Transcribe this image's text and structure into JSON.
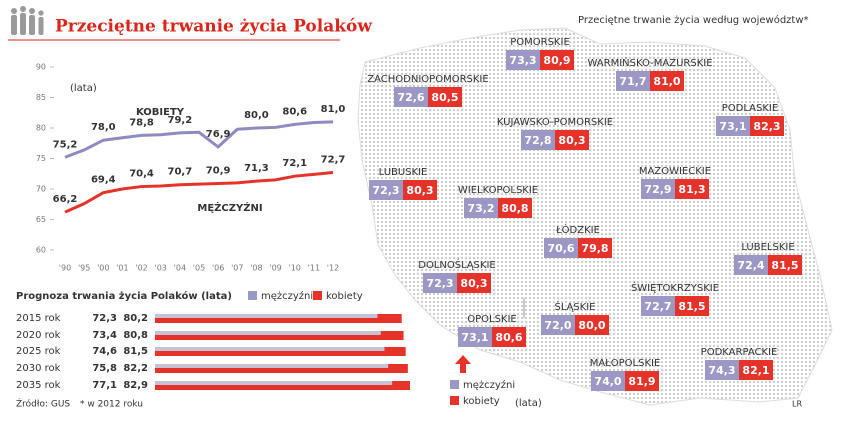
{
  "title": "Przeciętne trwanie życia Polaków",
  "chart_data": [
    {
      "type": "line",
      "ylabel": "(lata)",
      "categories": [
        "'90",
        "'95",
        "'00",
        "'01",
        "'02",
        "'03",
        "'04",
        "'05",
        "'06",
        "'07",
        "'08",
        "'09",
        "'10",
        "'11",
        "'12"
      ],
      "ylim": [
        60,
        90
      ],
      "yticks": [
        60,
        65,
        70,
        75,
        80,
        85,
        90
      ],
      "series": [
        {
          "name": "KOBIETY",
          "color": "#8e8bc3",
          "values": [
            75.2,
            76.4,
            78.0,
            78.4,
            78.8,
            78.9,
            79.2,
            79.3,
            76.9,
            79.8,
            80.0,
            80.1,
            80.6,
            80.9,
            81.0
          ],
          "value_labels": [
            "75,2",
            null,
            "78,0",
            null,
            "78,8",
            null,
            "79,2",
            null,
            "76,9",
            null,
            "80,0",
            null,
            "80,6",
            null,
            "81,0"
          ]
        },
        {
          "name": "MĘŻCZYŹNI",
          "color": "#e5332a",
          "values": [
            66.2,
            67.6,
            69.4,
            70.0,
            70.4,
            70.5,
            70.7,
            70.8,
            70.9,
            71.0,
            71.3,
            71.5,
            72.1,
            72.4,
            72.7
          ],
          "value_labels": [
            "66,2",
            null,
            "69,4",
            null,
            "70,4",
            null,
            "70,7",
            null,
            "70,9",
            null,
            "71,3",
            null,
            "72,1",
            null,
            "72,7"
          ]
        }
      ]
    },
    {
      "type": "bar",
      "orientation": "horizontal",
      "title": "Prognoza trwania życia Polaków (lata)",
      "categories": [
        "2015 rok",
        "2020 rok",
        "2025 rok",
        "2030 rok",
        "2035 rok"
      ],
      "series": [
        {
          "name": "mężczyźni",
          "color": "#c4c2d4",
          "values": [
            72.3,
            73.4,
            74.6,
            75.8,
            77.1
          ],
          "value_labels": [
            "72,3",
            "73,4",
            "74,6",
            "75,8",
            "77,1"
          ]
        },
        {
          "name": "kobiety",
          "color": "#e5332a",
          "values": [
            80.2,
            80.8,
            81.5,
            82.2,
            82.9
          ],
          "value_labels": [
            "80,2",
            "80,8",
            "81,5",
            "82,2",
            "82,9"
          ]
        }
      ]
    }
  ],
  "map": {
    "title": "Przeciętne trwanie życia według województw*",
    "legend": [
      {
        "name": "mężczyźni",
        "color": "#9c98c6"
      },
      {
        "name": "kobiety",
        "color": "#e5332a"
      }
    ],
    "unit": "(lata)",
    "regions": [
      {
        "name": "POMORSKIE",
        "values": [
          73.3,
          80.9
        ],
        "value_labels": [
          "73,3",
          "80,9"
        ]
      },
      {
        "name": "ZACHODNIOPOMORSKIE",
        "values": [
          72.6,
          80.5
        ],
        "value_labels": [
          "72,6",
          "80,5"
        ]
      },
      {
        "name": "WARMIŃSKO-MAZURSKIE",
        "values": [
          71.7,
          81.0
        ],
        "value_labels": [
          "71,7",
          "81,0"
        ]
      },
      {
        "name": "PODLASKIE",
        "values": [
          73.1,
          82.3
        ],
        "value_labels": [
          "73,1",
          "82,3"
        ]
      },
      {
        "name": "KUJAWSKO-POMORSKIE",
        "values": [
          72.8,
          80.3
        ],
        "value_labels": [
          "72,8",
          "80,3"
        ]
      },
      {
        "name": "LUBUSKIE",
        "values": [
          72.3,
          80.3
        ],
        "value_labels": [
          "72,3",
          "80,3"
        ]
      },
      {
        "name": "MAZOWIECKIE",
        "values": [
          72.9,
          81.3
        ],
        "value_labels": [
          "72,9",
          "81,3"
        ]
      },
      {
        "name": "WIELKOPOLSKIE",
        "values": [
          73.2,
          80.8
        ],
        "value_labels": [
          "73,2",
          "80,8"
        ]
      },
      {
        "name": "ŁÓDZKIE",
        "values": [
          70.6,
          79.8
        ],
        "value_labels": [
          "70,6",
          "79,8"
        ]
      },
      {
        "name": "LUBELSKIE",
        "values": [
          72.4,
          81.5
        ],
        "value_labels": [
          "72,4",
          "81,5"
        ]
      },
      {
        "name": "DOLNOŚLĄSKIE",
        "values": [
          72.3,
          80.3
        ],
        "value_labels": [
          "72,3",
          "80,3"
        ]
      },
      {
        "name": "ŚWIĘTOKRZYSKIE",
        "values": [
          72.7,
          81.5
        ],
        "value_labels": [
          "72,7",
          "81,5"
        ]
      },
      {
        "name": "OPOLSKIE",
        "values": [
          73.1,
          80.6
        ],
        "value_labels": [
          "73,1",
          "80,6"
        ]
      },
      {
        "name": "ŚLĄSKIE",
        "values": [
          72.0,
          80.0
        ],
        "value_labels": [
          "72,0",
          "80,0"
        ]
      },
      {
        "name": "MAŁOPOLSKIE",
        "values": [
          74.0,
          81.9
        ],
        "value_labels": [
          "74,0",
          "81,9"
        ]
      },
      {
        "name": "PODKARPACKIE",
        "values": [
          74.3,
          82.1
        ],
        "value_labels": [
          "74,3",
          "82,1"
        ]
      }
    ]
  },
  "source": "Źródło: GUS",
  "footnote": "* w 2012 roku",
  "credit": "LR"
}
